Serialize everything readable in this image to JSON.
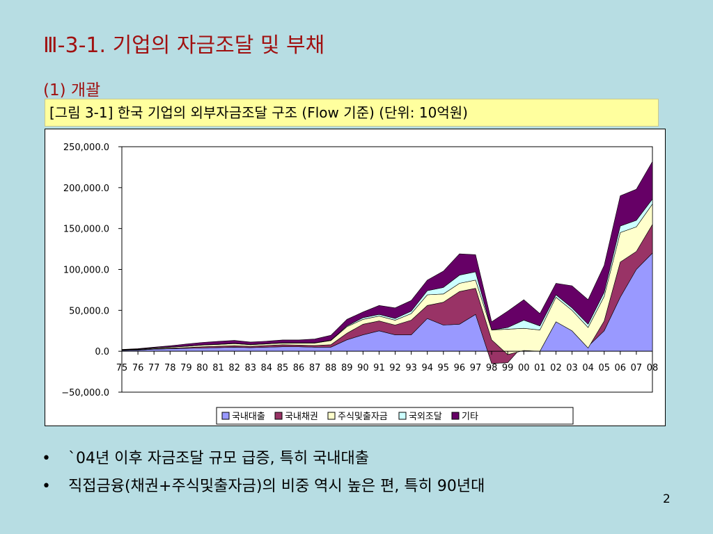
{
  "slide": {
    "title": "Ⅲ-3-1. 기업의 자금조달 및 부채",
    "section": "(1) 개괄",
    "caption": "[그림 3-1] 한국 기업의 외부자금조달 구조 (Flow 기준) (단위: 10억원)",
    "bullets": [
      "`04년 이후 자금조달 규모 급증, 특히 국내대출",
      "직접금융(채권+주식및출자금)의 비중 역시 높은 편, 특히 90년대"
    ],
    "page_number": "2",
    "bullet_symbol": "•"
  },
  "chart_data": {
    "type": "area",
    "stacked": true,
    "x": [
      "75",
      "76",
      "77",
      "78",
      "79",
      "80",
      "81",
      "82",
      "83",
      "84",
      "85",
      "86",
      "87",
      "88",
      "89",
      "90",
      "91",
      "92",
      "93",
      "94",
      "95",
      "96",
      "97",
      "98",
      "99",
      "00",
      "01",
      "02",
      "03",
      "04",
      "05",
      "06",
      "07",
      "08"
    ],
    "y_ticks": [
      "250,000.0",
      "200,000.0",
      "150,000.0",
      "100,000.0",
      "50,000.0",
      "0.0",
      "−50,000.0"
    ],
    "y_tick_values": [
      250000,
      200000,
      150000,
      100000,
      50000,
      0,
      -50000
    ],
    "ylim": [
      -50000,
      250000
    ],
    "grid": false,
    "legend_position": "bottom",
    "series": [
      {
        "name": "국내대출",
        "color": "#9999ff",
        "values": [
          1000,
          1500,
          2500,
          3000,
          3500,
          4000,
          4500,
          5000,
          4500,
          5000,
          5500,
          5500,
          5000,
          5000,
          14000,
          20000,
          25000,
          20000,
          20000,
          40000,
          32000,
          33000,
          45000,
          -15000,
          -14000,
          8000,
          12000,
          38000,
          30000,
          6000,
          25000,
          66000,
          100000,
          120000
        ]
      },
      {
        "name": "국내채권",
        "color": "#993366",
        "values": [
          300,
          400,
          600,
          800,
          1000,
          1500,
          1700,
          1800,
          1500,
          2000,
          2500,
          2000,
          2000,
          3000,
          8000,
          13000,
          12000,
          12000,
          18000,
          16000,
          28000,
          40000,
          32000,
          29000,
          10000,
          -7000,
          -12000,
          -2000,
          -5000,
          -2000,
          12000,
          43000,
          22000,
          35000
        ]
      },
      {
        "name": "주식및출자금",
        "color": "#ffffcc",
        "values": [
          400,
          500,
          800,
          1200,
          1500,
          2000,
          2000,
          2500,
          2000,
          2000,
          2000,
          2500,
          3000,
          5000,
          8000,
          6000,
          6000,
          6000,
          8000,
          13000,
          10000,
          10000,
          10000,
          12000,
          31000,
          27000,
          26000,
          30000,
          25000,
          25000,
          30000,
          36000,
          30000,
          25000
        ]
      },
      {
        "name": "국외조달",
        "color": "#ccffff",
        "values": [
          100,
          100,
          200,
          200,
          300,
          300,
          400,
          400,
          300,
          300,
          300,
          300,
          400,
          500,
          1000,
          2000,
          2000,
          2000,
          3000,
          5000,
          8000,
          10000,
          10000,
          0,
          2000,
          10000,
          5000,
          3000,
          3000,
          4000,
          5000,
          8000,
          8000,
          6000
        ]
      },
      {
        "name": "기타",
        "color": "#660066",
        "values": [
          500,
          700,
          900,
          1500,
          2500,
          3000,
          3500,
          3500,
          3000,
          3000,
          3500,
          3500,
          4500,
          6000,
          8000,
          7000,
          11000,
          13000,
          13000,
          13000,
          20000,
          26000,
          21000,
          10000,
          20000,
          25000,
          15000,
          14000,
          27000,
          30000,
          33000,
          37000,
          38000,
          46000
        ]
      }
    ]
  }
}
